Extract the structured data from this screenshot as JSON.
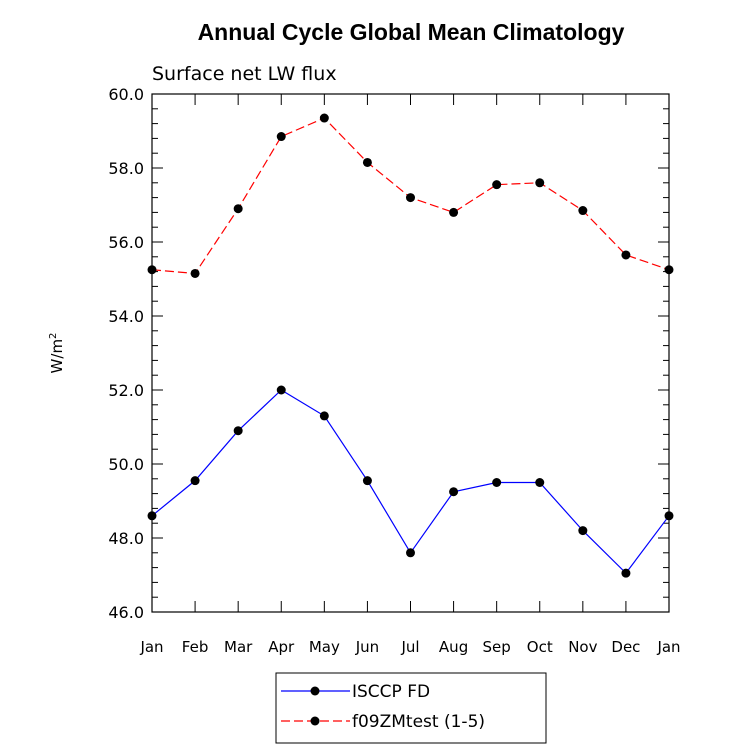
{
  "chart_data": {
    "type": "line",
    "title": "Annual Cycle Global Mean Climatology",
    "subtitle": "Surface net LW flux",
    "ylabel": "W/m",
    "ylabel_sup": "2",
    "xlabel": "",
    "ylim": [
      46.0,
      60.0
    ],
    "yticks": [
      "46.0",
      "48.0",
      "50.0",
      "52.0",
      "54.0",
      "56.0",
      "58.0",
      "60.0"
    ],
    "categories": [
      "Jan",
      "Feb",
      "Mar",
      "Apr",
      "May",
      "Jun",
      "Jul",
      "Aug",
      "Sep",
      "Oct",
      "Nov",
      "Dec",
      "Jan"
    ],
    "series": [
      {
        "name": "ISCCP FD",
        "color": "#0000ff",
        "dash": "solid",
        "values": [
          48.6,
          49.55,
          50.9,
          52.0,
          51.3,
          49.55,
          47.6,
          49.25,
          49.5,
          49.5,
          48.2,
          47.05,
          48.6
        ]
      },
      {
        "name": "f09ZMtest (1-5)",
        "color": "#ff0000",
        "dash": "dashed",
        "values": [
          55.25,
          55.15,
          56.9,
          58.85,
          59.35,
          58.15,
          57.2,
          56.8,
          57.55,
          57.6,
          56.85,
          55.65,
          55.25
        ]
      }
    ],
    "legend_position": "bottom-center"
  }
}
